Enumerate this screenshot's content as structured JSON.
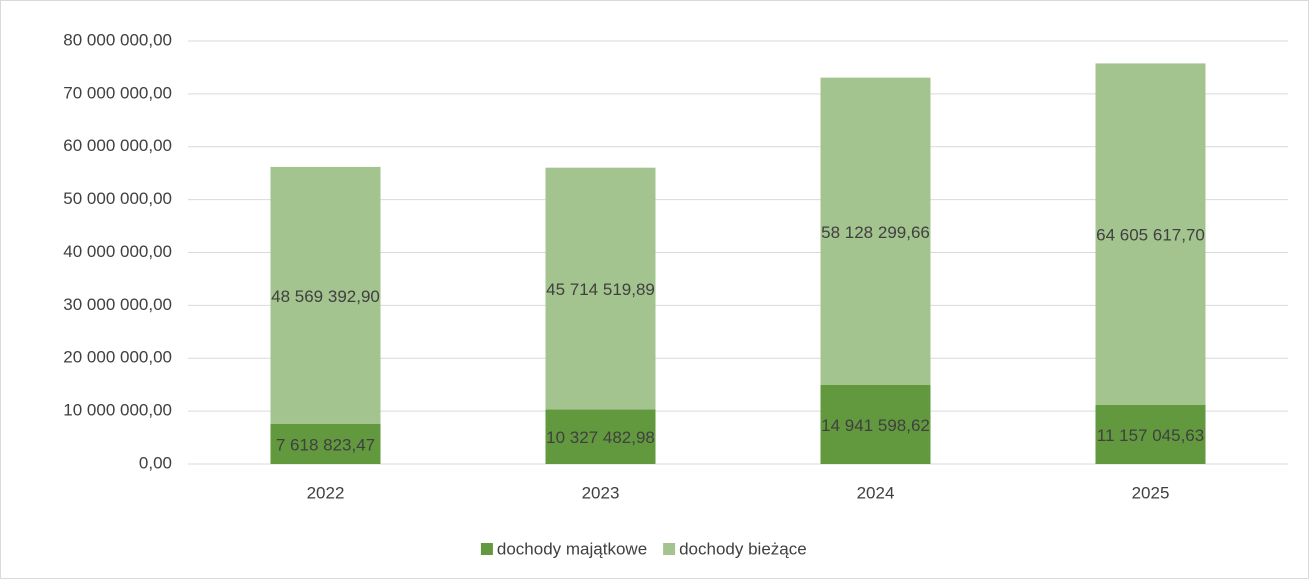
{
  "chart_data": {
    "type": "bar",
    "stacked": true,
    "categories": [
      "2022",
      "2023",
      "2024",
      "2025"
    ],
    "series": [
      {
        "name": "dochody majątkowe",
        "color": "#62993e",
        "values": [
          7618823.47,
          10327482.98,
          14941598.62,
          11157045.63
        ],
        "value_labels": [
          "7 618 823,47",
          "10 327 482,98",
          "14 941 598,62",
          "11 157 045,63"
        ]
      },
      {
        "name": "dochody bieżące",
        "color": "#a3c48f",
        "values": [
          48569392.9,
          45714519.89,
          58128299.66,
          64605617.7
        ],
        "value_labels": [
          "48 569 392,90",
          "45 714 519,89",
          "58 128 299,66",
          "64 605 617,70"
        ]
      }
    ],
    "ylim": [
      0,
      80000000
    ],
    "yticks": [
      {
        "value": 0,
        "label": "0,00"
      },
      {
        "value": 10000000,
        "label": "10 000 000,00"
      },
      {
        "value": 20000000,
        "label": "20 000 000,00"
      },
      {
        "value": 30000000,
        "label": "30 000 000,00"
      },
      {
        "value": 40000000,
        "label": "40 000 000,00"
      },
      {
        "value": 50000000,
        "label": "50 000 000,00"
      },
      {
        "value": 60000000,
        "label": "60 000 000,00"
      },
      {
        "value": 70000000,
        "label": "70 000 000,00"
      },
      {
        "value": 80000000,
        "label": "80 000 000,00"
      }
    ],
    "grid": true,
    "legend": "bottom"
  }
}
